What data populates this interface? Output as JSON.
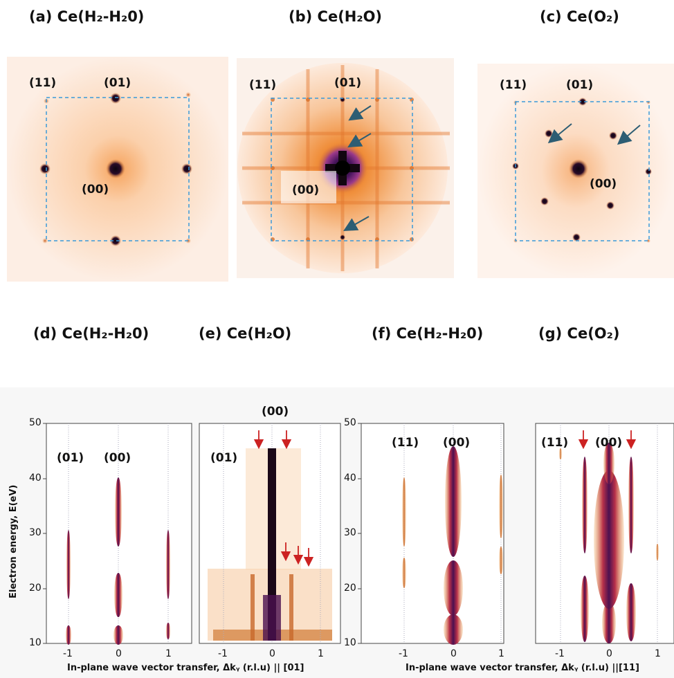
{
  "panels_top": [
    {
      "title": "(a) Ce(H₂-H₂0)",
      "spots": {
        "s11": "(11)",
        "s01": "(01)",
        "s00": "(00)"
      }
    },
    {
      "title": "(b) Ce(H₂O)",
      "spots": {
        "s11": "(11)",
        "s01": "(01)",
        "s00": "(00)"
      }
    },
    {
      "title": "(c) Ce(O₂)",
      "spots": {
        "s11": "(11)",
        "s01": "(01)",
        "s00": "(00)"
      }
    }
  ],
  "panels_bottom": [
    {
      "title": "(d) Ce(H₂-H₂0)"
    },
    {
      "title": "(e) Ce(H₂O)"
    },
    {
      "title": "(f) Ce(H₂-H₂0)"
    },
    {
      "title": "(g) Ce(O₂)"
    }
  ],
  "plot_labels": {
    "d_01": "(01)",
    "d_00": "(00)",
    "e_00": "(00)",
    "e_01": "(01)",
    "f_11": "(11)",
    "f_00": "(00)",
    "g_11": "(11)",
    "g_00": "(00)"
  },
  "axes": {
    "ylabel": "Electron energy, E(eV)",
    "xlabel_left": "In-plane wave vector transfer, Δkᵧ (r.l.u) || [01]",
    "xlabel_right": "In-plane wave vector transfer, Δkᵧ (r.l.u) ||[11]",
    "yticks": [
      "50",
      "40",
      "30",
      "20",
      "10"
    ],
    "xticks": [
      "-1",
      "0",
      "1"
    ]
  },
  "chart_data": [
    {
      "type": "heatmap",
      "panel": "d",
      "xlim": [
        -1.3,
        1.3
      ],
      "ylim": [
        10,
        50
      ],
      "streaks": [
        {
          "x": -1,
          "E": [
            [
              11,
              15
            ],
            [
              22,
              35
            ]
          ]
        },
        {
          "x": 0,
          "E": [
            [
              11,
              14
            ],
            [
              16,
              24
            ],
            [
              29,
              42
            ]
          ]
        },
        {
          "x": 1,
          "E": [
            [
              12,
              15
            ],
            [
              22,
              35
            ]
          ]
        }
      ]
    },
    {
      "type": "heatmap",
      "panel": "e",
      "xlim": [
        -1.3,
        1.3
      ],
      "ylim": [
        10,
        50
      ],
      "streaks": [
        {
          "x": 0,
          "E": [
            [
              11,
              45
            ]
          ]
        }
      ],
      "arrows_x": [
        -0.3,
        0.3,
        0.3,
        0.55,
        0.8
      ]
    },
    {
      "type": "heatmap",
      "panel": "f",
      "xlim": [
        -1.3,
        1.3
      ],
      "ylim": [
        10,
        50
      ],
      "streaks": [
        {
          "x": -1,
          "E": [
            [
              21,
              26
            ],
            [
              29,
              42
            ]
          ]
        },
        {
          "x": 0,
          "E": [
            [
              11,
              45
            ]
          ]
        },
        {
          "x": 1,
          "E": [
            [
              22,
              28
            ],
            [
              30,
              42
            ]
          ]
        }
      ]
    },
    {
      "type": "heatmap",
      "panel": "g",
      "xlim": [
        -1.3,
        1.3
      ],
      "ylim": [
        10,
        50
      ],
      "streaks": [
        {
          "x": -1,
          "E": [
            [
              42,
              45
            ]
          ]
        },
        {
          "x": -0.5,
          "E": [
            [
              11,
              22
            ],
            [
              24,
              43
            ]
          ]
        },
        {
          "x": 0,
          "E": [
            [
              11,
              45
            ]
          ]
        },
        {
          "x": 0.5,
          "E": [
            [
              11,
              22
            ],
            [
              26,
              44
            ]
          ]
        },
        {
          "x": 1,
          "E": [
            [
              28,
              31
            ]
          ]
        }
      ],
      "arrows_x": [
        -0.5,
        0.5
      ]
    }
  ],
  "colors": {
    "pattern_bg": "#fde9dc",
    "spot_dark": "#150818",
    "spot_orange": "#e88838",
    "dash": "#3a9ad9",
    "arrow": "#2d5d73",
    "red_arrow": "#cc2222",
    "streak": "#6d1858"
  }
}
